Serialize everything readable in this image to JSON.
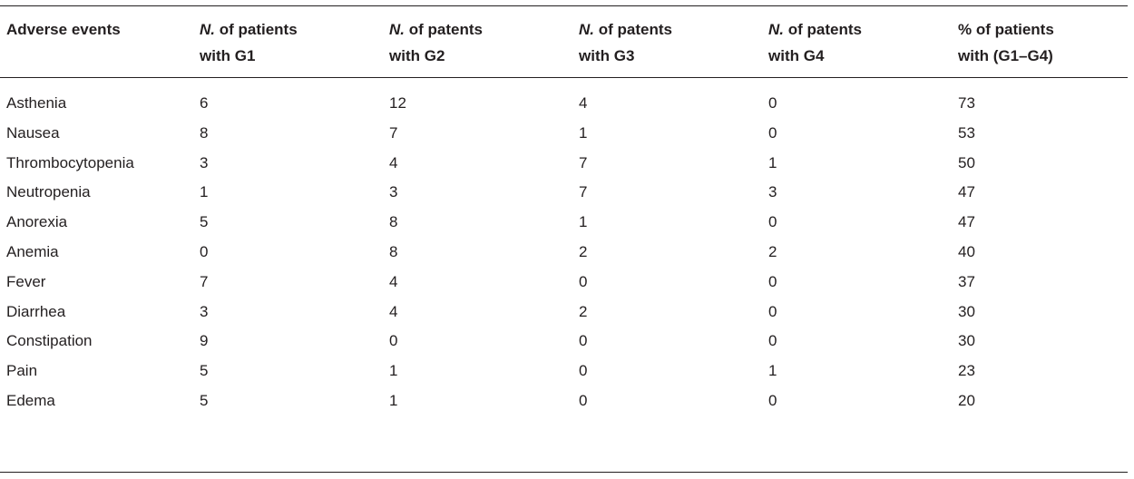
{
  "table": {
    "headers": [
      {
        "line1": "Adverse events",
        "line1_italic": "",
        "line1_rest": "",
        "line2": ""
      },
      {
        "line1": "",
        "line1_italic": "N.",
        "line1_rest": " of patients",
        "line2": "with G1"
      },
      {
        "line1": "",
        "line1_italic": "N.",
        "line1_rest": " of patents",
        "line2": "with G2"
      },
      {
        "line1": "",
        "line1_italic": "N.",
        "line1_rest": " of patents",
        "line2": "with G3"
      },
      {
        "line1": "",
        "line1_italic": "N.",
        "line1_rest": " of patents",
        "line2": "with G4"
      },
      {
        "line1": "% of patients",
        "line1_italic": "",
        "line1_rest": "",
        "line2": "with (G1–G4)"
      }
    ],
    "rows": [
      {
        "event": "Asthenia",
        "g1": "6",
        "g2": "12",
        "g3": "4",
        "g4": "0",
        "pct": "73"
      },
      {
        "event": "Nausea",
        "g1": "8",
        "g2": "7",
        "g3": "1",
        "g4": "0",
        "pct": "53"
      },
      {
        "event": "Thrombocytopenia",
        "g1": "3",
        "g2": "4",
        "g3": "7",
        "g4": "1",
        "pct": "50"
      },
      {
        "event": "Neutropenia",
        "g1": "1",
        "g2": "3",
        "g3": "7",
        "g4": "3",
        "pct": "47"
      },
      {
        "event": "Anorexia",
        "g1": "5",
        "g2": "8",
        "g3": "1",
        "g4": "0",
        "pct": "47"
      },
      {
        "event": "Anemia",
        "g1": "0",
        "g2": "8",
        "g3": "2",
        "g4": "2",
        "pct": "40"
      },
      {
        "event": "Fever",
        "g1": "7",
        "g2": "4",
        "g3": "0",
        "g4": "0",
        "pct": "37"
      },
      {
        "event": "Diarrhea",
        "g1": "3",
        "g2": "4",
        "g3": "2",
        "g4": "0",
        "pct": "30"
      },
      {
        "event": "Constipation",
        "g1": "9",
        "g2": "0",
        "g3": "0",
        "g4": "0",
        "pct": "30"
      },
      {
        "event": "Pain",
        "g1": "5",
        "g2": "1",
        "g3": "0",
        "g4": "1",
        "pct": "23"
      },
      {
        "event": "Edema",
        "g1": "5",
        "g2": "1",
        "g3": "0",
        "g4": "0",
        "pct": "20"
      }
    ]
  }
}
